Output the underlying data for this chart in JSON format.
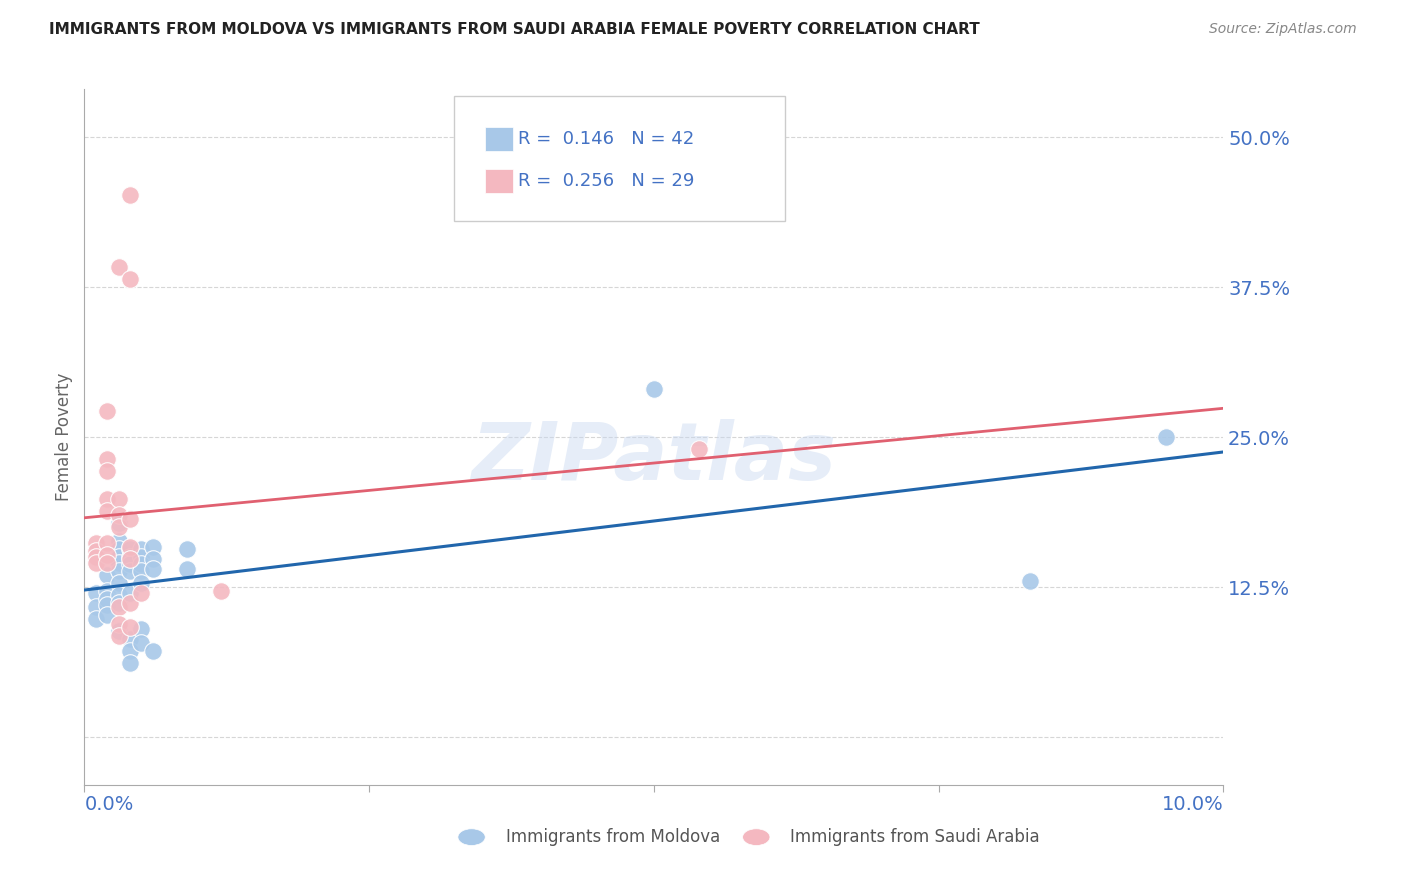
{
  "title": "IMMIGRANTS FROM MOLDOVA VS IMMIGRANTS FROM SAUDI ARABIA FEMALE POVERTY CORRELATION CHART",
  "source": "Source: ZipAtlas.com",
  "ylabel": "Female Poverty",
  "y_ticks": [
    0.0,
    0.125,
    0.25,
    0.375,
    0.5
  ],
  "y_tick_labels": [
    "",
    "12.5%",
    "25.0%",
    "37.5%",
    "50.0%"
  ],
  "x_range": [
    0.0,
    0.1
  ],
  "y_range": [
    -0.04,
    0.54
  ],
  "moldova_color": "#a8c8e8",
  "saudi_color": "#f4b8c0",
  "moldova_line_color": "#2166ac",
  "saudi_line_color": "#e06070",
  "legend_text_color": "#4472c4",
  "tick_label_color": "#4472c4",
  "moldova_R": 0.146,
  "moldova_N": 42,
  "saudi_R": 0.256,
  "saudi_N": 29,
  "watermark": "ZIPatlas",
  "moldova_points": [
    [
      0.001,
      0.12
    ],
    [
      0.001,
      0.108
    ],
    [
      0.001,
      0.098
    ],
    [
      0.002,
      0.135
    ],
    [
      0.002,
      0.122
    ],
    [
      0.002,
      0.115
    ],
    [
      0.002,
      0.11
    ],
    [
      0.002,
      0.102
    ],
    [
      0.003,
      0.178
    ],
    [
      0.003,
      0.163
    ],
    [
      0.003,
      0.157
    ],
    [
      0.003,
      0.15
    ],
    [
      0.003,
      0.145
    ],
    [
      0.003,
      0.138
    ],
    [
      0.003,
      0.128
    ],
    [
      0.003,
      0.118
    ],
    [
      0.003,
      0.112
    ],
    [
      0.003,
      0.088
    ],
    [
      0.004,
      0.157
    ],
    [
      0.004,
      0.15
    ],
    [
      0.004,
      0.144
    ],
    [
      0.004,
      0.138
    ],
    [
      0.004,
      0.12
    ],
    [
      0.004,
      0.082
    ],
    [
      0.004,
      0.072
    ],
    [
      0.004,
      0.062
    ],
    [
      0.005,
      0.157
    ],
    [
      0.005,
      0.15
    ],
    [
      0.005,
      0.144
    ],
    [
      0.005,
      0.138
    ],
    [
      0.005,
      0.128
    ],
    [
      0.005,
      0.09
    ],
    [
      0.005,
      0.078
    ],
    [
      0.006,
      0.158
    ],
    [
      0.006,
      0.148
    ],
    [
      0.006,
      0.14
    ],
    [
      0.006,
      0.072
    ],
    [
      0.009,
      0.157
    ],
    [
      0.009,
      0.14
    ],
    [
      0.05,
      0.29
    ],
    [
      0.095,
      0.25
    ],
    [
      0.083,
      0.13
    ]
  ],
  "saudi_points": [
    [
      0.001,
      0.162
    ],
    [
      0.001,
      0.155
    ],
    [
      0.001,
      0.15
    ],
    [
      0.001,
      0.145
    ],
    [
      0.002,
      0.272
    ],
    [
      0.002,
      0.232
    ],
    [
      0.002,
      0.222
    ],
    [
      0.002,
      0.198
    ],
    [
      0.002,
      0.188
    ],
    [
      0.002,
      0.162
    ],
    [
      0.002,
      0.152
    ],
    [
      0.002,
      0.145
    ],
    [
      0.003,
      0.392
    ],
    [
      0.003,
      0.198
    ],
    [
      0.003,
      0.185
    ],
    [
      0.003,
      0.175
    ],
    [
      0.003,
      0.108
    ],
    [
      0.003,
      0.094
    ],
    [
      0.003,
      0.084
    ],
    [
      0.004,
      0.452
    ],
    [
      0.004,
      0.382
    ],
    [
      0.004,
      0.182
    ],
    [
      0.004,
      0.158
    ],
    [
      0.004,
      0.148
    ],
    [
      0.004,
      0.112
    ],
    [
      0.004,
      0.092
    ],
    [
      0.005,
      0.12
    ],
    [
      0.054,
      0.24
    ],
    [
      0.012,
      0.122
    ]
  ]
}
